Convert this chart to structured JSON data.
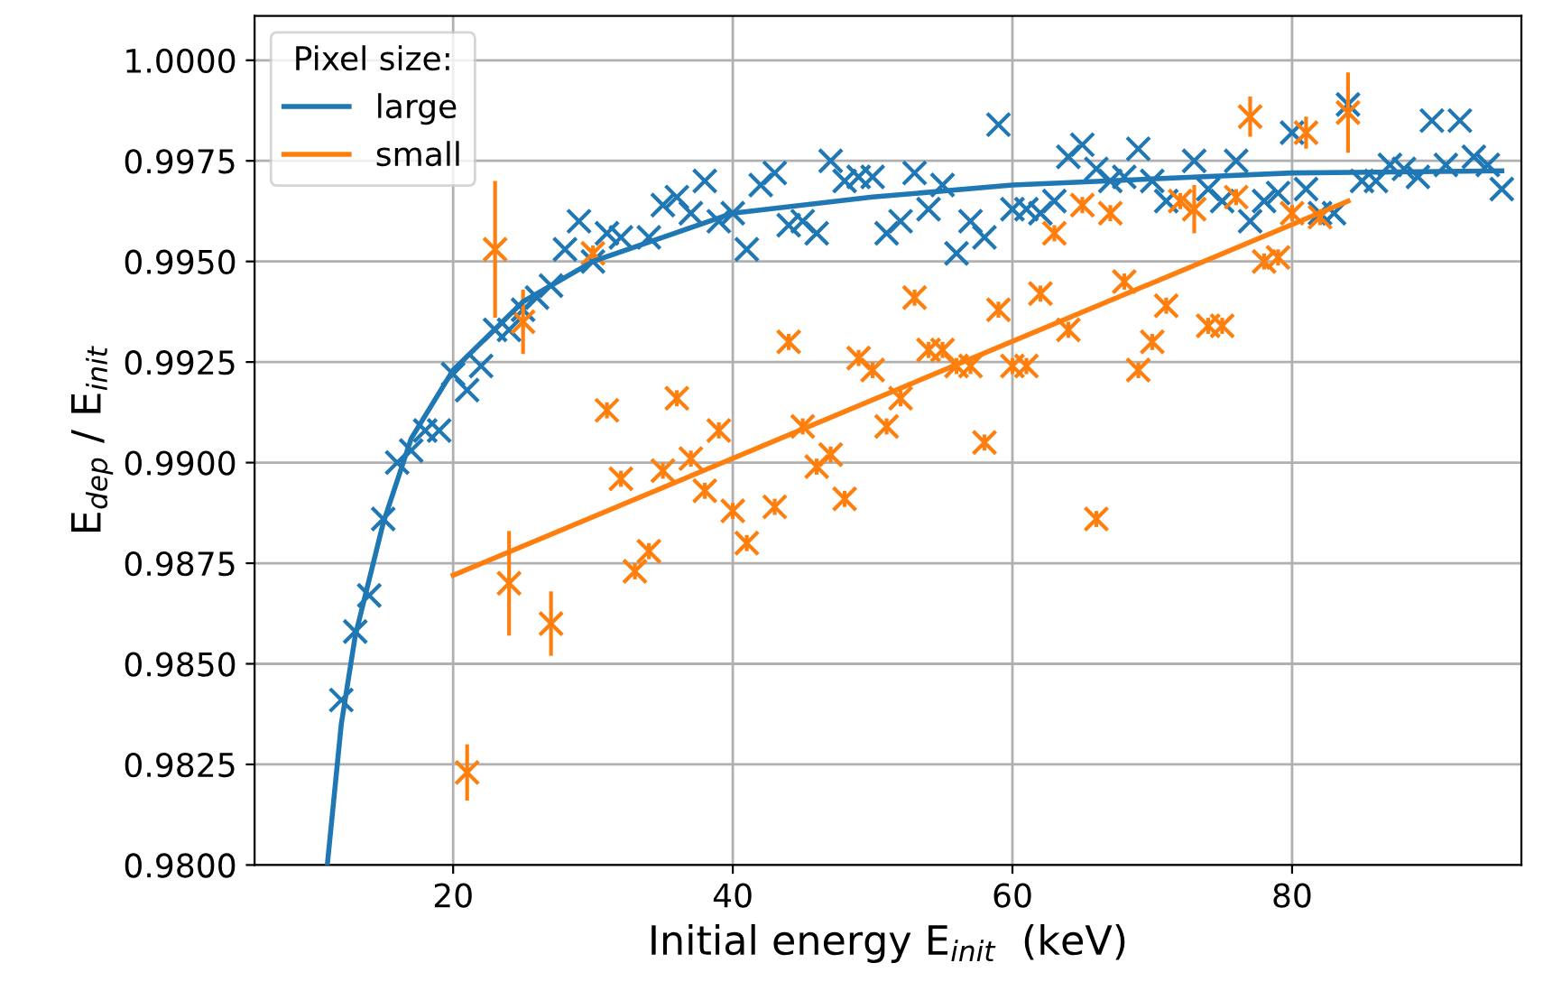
{
  "chart_data": {
    "type": "scatter",
    "xlabel": "Initial energy E$_{init}$  (keV)",
    "ylabel": "E$_{dep}$ / E$_{init}$",
    "legend_title": "Pixel size:",
    "legend": "top left",
    "grid": true,
    "xlim": [
      5.8,
      96.4
    ],
    "xticks": [
      20,
      40,
      60,
      80
    ],
    "ylim": [
      0.98,
      1.0011
    ],
    "yticks": [
      {
        "value": 0.98,
        "label": "0.9800"
      },
      {
        "value": 0.9825,
        "label": "0.9825"
      },
      {
        "value": 0.985,
        "label": "0.9850"
      },
      {
        "value": 0.9875,
        "label": "0.9875"
      },
      {
        "value": 0.99,
        "label": "0.9900"
      },
      {
        "value": 0.9925,
        "label": "0.9925"
      },
      {
        "value": 0.995,
        "label": "0.9950"
      },
      {
        "value": 0.9975,
        "label": "0.9975"
      },
      {
        "value": 1.0,
        "label": "1.0000"
      }
    ],
    "series": [
      {
        "marker": "cross",
        "color": "#1f77b4",
        "x": [
          12,
          13,
          14,
          15,
          16,
          17,
          18,
          19,
          20,
          21,
          22,
          23,
          24,
          25,
          26,
          27,
          28,
          29,
          30,
          31,
          32,
          34,
          35,
          36,
          37,
          38,
          39,
          40,
          41,
          42,
          43,
          44,
          45,
          46,
          47,
          48,
          49,
          50,
          51,
          52,
          53,
          54,
          55,
          56,
          57,
          58,
          59,
          60,
          61,
          62,
          63,
          64,
          65,
          66,
          67,
          68,
          69,
          70,
          71,
          73,
          74,
          75,
          76,
          77,
          78,
          79,
          80,
          81,
          82,
          83,
          84,
          85,
          86,
          87,
          88,
          89,
          90,
          91,
          92,
          93,
          94,
          95
        ],
        "values": [
          0.9841,
          0.9858,
          0.9867,
          0.9886,
          0.99,
          0.9903,
          0.9908,
          0.9908,
          0.9922,
          0.9918,
          0.9924,
          0.9933,
          0.9933,
          0.9938,
          0.9941,
          0.9944,
          0.9953,
          0.996,
          0.995,
          0.9957,
          0.9956,
          0.9956,
          0.9964,
          0.9966,
          0.9962,
          0.997,
          0.996,
          0.9962,
          0.9953,
          0.9969,
          0.9972,
          0.9959,
          0.996,
          0.9957,
          0.9975,
          0.997,
          0.9971,
          0.9971,
          0.9957,
          0.996,
          0.9972,
          0.9963,
          0.9969,
          0.9952,
          0.996,
          0.9956,
          0.9984,
          0.9963,
          0.9963,
          0.9962,
          0.9965,
          0.9976,
          0.9979,
          0.9973,
          0.997,
          0.9971,
          0.9978,
          0.997,
          0.9965,
          0.9975,
          0.9968,
          0.9965,
          0.9975,
          0.996,
          0.9965,
          0.9967,
          0.9982,
          0.9968,
          0.9962,
          0.9962,
          0.9989,
          0.997,
          0.997,
          0.9974,
          0.9973,
          0.9971,
          0.9985,
          0.9974,
          0.9985,
          0.9976,
          0.9974,
          0.9968
        ]
      },
      {
        "marker": "cross",
        "color": "#ff7f0e",
        "x": [
          21,
          23,
          24,
          25,
          27,
          30,
          31,
          32,
          33,
          34,
          35,
          36,
          37,
          38,
          39,
          40,
          41,
          43,
          44,
          45,
          46,
          47,
          48,
          49,
          50,
          51,
          52,
          53,
          54,
          55,
          56,
          57,
          58,
          59,
          60,
          61,
          62,
          63,
          64,
          65,
          66,
          67,
          68,
          69,
          70,
          71,
          72,
          73,
          74,
          75,
          76,
          77,
          78,
          79,
          80,
          81,
          82,
          84
        ],
        "values": [
          0.9823,
          0.9953,
          0.987,
          0.9935,
          0.986,
          0.9952,
          0.9913,
          0.9896,
          0.9873,
          0.9878,
          0.9898,
          0.9916,
          0.9901,
          0.9893,
          0.9908,
          0.9888,
          0.988,
          0.9889,
          0.993,
          0.9909,
          0.9899,
          0.9902,
          0.9891,
          0.9926,
          0.9923,
          0.9909,
          0.9916,
          0.9941,
          0.9928,
          0.9928,
          0.9924,
          0.9924,
          0.9905,
          0.9938,
          0.9924,
          0.9924,
          0.9942,
          0.9957,
          0.9933,
          0.9964,
          0.9886,
          0.9962,
          0.9945,
          0.9923,
          0.993,
          0.9939,
          0.9965,
          0.9963,
          0.9934,
          0.9934,
          0.9966,
          0.9986,
          0.995,
          0.9951,
          0.9962,
          0.9982,
          0.9961,
          0.9987
        ],
        "errors": [
          0.0007,
          0.0017,
          0.0013,
          0.0008,
          0.0008,
          0.0002,
          0.0002,
          0.0002,
          0.0002,
          0.0002,
          0.0002,
          0.0002,
          0.0002,
          0.0002,
          0.0002,
          0.0002,
          0.0002,
          0.0002,
          0.0002,
          0.0002,
          0.0002,
          0.0002,
          0.0002,
          0.0002,
          0.0002,
          0.0002,
          0.0002,
          0.0002,
          0.0002,
          0.0002,
          0.0002,
          0.0002,
          0.0002,
          0.0002,
          0.0002,
          0.0002,
          0.0002,
          0.0002,
          0.0002,
          0.0002,
          0.0002,
          0.0002,
          0.0002,
          0.0002,
          0.0002,
          0.0002,
          0.0002,
          0.0006,
          0.0002,
          0.0002,
          0.0002,
          0.0005,
          0.0002,
          0.0002,
          0.0002,
          0.0004,
          0.0002,
          0.001
        ]
      },
      {
        "type": "line",
        "name": "large",
        "color": "#1f77b4",
        "x": [
          11,
          12,
          13,
          15,
          17,
          20,
          25,
          30,
          40,
          50,
          60,
          80,
          95
        ],
        "values": [
          0.98,
          0.9835,
          0.9857,
          0.9885,
          0.9906,
          0.9923,
          0.994,
          0.995,
          0.9962,
          0.9966,
          0.9969,
          0.9972,
          0.99725
        ]
      },
      {
        "type": "line",
        "name": "small",
        "color": "#ff7f0e",
        "x": [
          20,
          84
        ],
        "values": [
          0.9872,
          0.9965
        ]
      }
    ]
  }
}
